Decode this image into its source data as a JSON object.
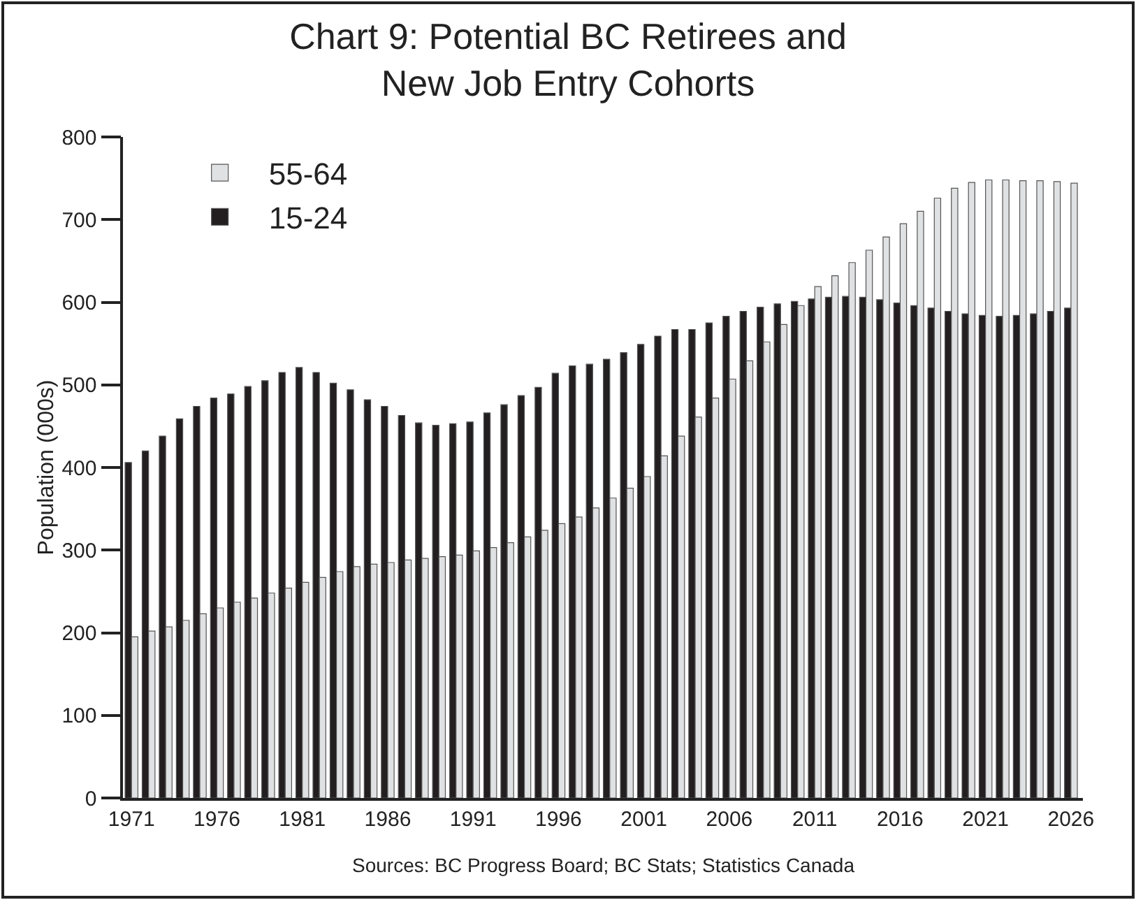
{
  "chart_data": {
    "type": "bar",
    "title": "Chart 9: Potential BC Retirees and\nNew Job Entry Cohorts",
    "ylabel": "Population (000s)",
    "x": [
      1971,
      1972,
      1973,
      1974,
      1975,
      1976,
      1977,
      1978,
      1979,
      1980,
      1981,
      1982,
      1983,
      1984,
      1985,
      1986,
      1987,
      1988,
      1989,
      1990,
      1991,
      1992,
      1993,
      1994,
      1995,
      1996,
      1997,
      1998,
      1999,
      2000,
      2001,
      2002,
      2003,
      2004,
      2005,
      2006,
      2007,
      2008,
      2009,
      2010,
      2011,
      2012,
      2013,
      2014,
      2015,
      2016,
      2017,
      2018,
      2019,
      2020,
      2021,
      2022,
      2023,
      2024,
      2025,
      2026
    ],
    "series": [
      {
        "name": "15-24",
        "color": "#231f20",
        "values": [
          406,
          420,
          438,
          459,
          474,
          484,
          489,
          498,
          505,
          515,
          521,
          515,
          502,
          494,
          482,
          474,
          463,
          454,
          451,
          453,
          455,
          466,
          476,
          487,
          497,
          514,
          523,
          525,
          531,
          539,
          549,
          559,
          567,
          567,
          575,
          583,
          589,
          594,
          598,
          601,
          604,
          606,
          607,
          606,
          603,
          599,
          596,
          593,
          589,
          586,
          584,
          583,
          584,
          586,
          589,
          593
        ]
      },
      {
        "name": "55-64",
        "color": "#e0e1e3",
        "values": [
          195,
          202,
          207,
          215,
          223,
          230,
          237,
          242,
          248,
          254,
          261,
          267,
          274,
          280,
          283,
          285,
          288,
          290,
          292,
          294,
          299,
          303,
          309,
          316,
          324,
          332,
          340,
          351,
          363,
          375,
          389,
          414,
          438,
          461,
          484,
          507,
          529,
          552,
          573,
          596,
          619,
          632,
          648,
          663,
          679,
          695,
          710,
          726,
          738,
          745,
          748,
          748,
          747,
          747,
          746,
          744
        ]
      }
    ],
    "xlim": [
      1970.5,
      2026.7
    ],
    "xticks": [
      1971,
      1976,
      1981,
      1986,
      1991,
      1996,
      2001,
      2006,
      2011,
      2016,
      2021,
      2026
    ],
    "ylim": [
      0,
      800
    ],
    "yticks": [
      0,
      100,
      200,
      300,
      400,
      500,
      600,
      700,
      800
    ],
    "legend": "top left",
    "annotations": [
      "Sources: BC Progress Board; BC Stats; Statistics Canada"
    ]
  }
}
